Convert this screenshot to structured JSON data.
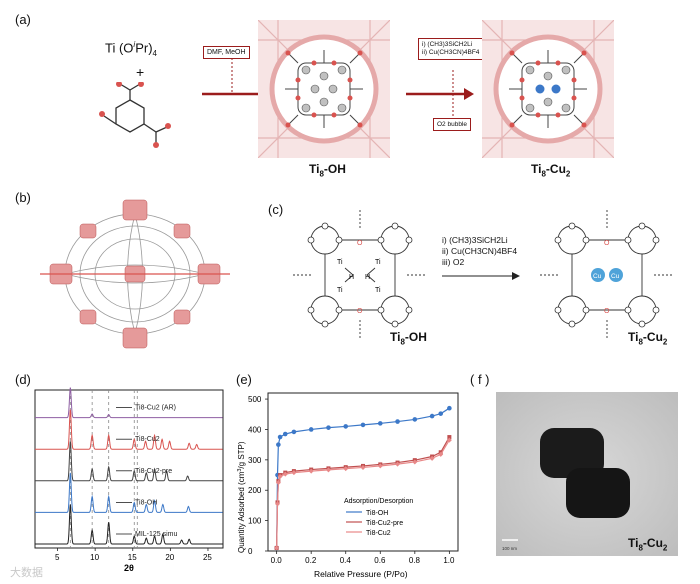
{
  "panels": {
    "a": {
      "label": "(a)",
      "reactant_ti": "Ti (O",
      "reactant_ti_sup": "i",
      "reactant_ti_rest": "Pr)",
      "reactant_ti_sub": "4",
      "plus": "+",
      "step1_box": "DMF, MeOH",
      "step2_box_line1": "i) (CH3)3SiCH2Li",
      "step2_box_line2": "ii) Cu(CH3CN)4BF4",
      "step3_box": "O2 bubble",
      "product1": "Ti8-OH",
      "product2": "Ti8-Cu2"
    },
    "b": {
      "label": "(b)"
    },
    "c": {
      "label": "(c)",
      "step_i": "i) (CH3)3SiCH2Li",
      "step_ii": "ii) Cu(CH3CN)4BF4",
      "step_iii": "iii) O2",
      "left_name": "Ti8-OH",
      "right_name": "Ti8-Cu2",
      "atom_ti": "Ti",
      "atom_o": "O",
      "atom_h": "H",
      "atom_cu": "Cu"
    },
    "d": {
      "label": "(d)",
      "xlabel": "2θ"
    },
    "e": {
      "label": "(e)",
      "xlabel": "Relative Pressure (P/Po)",
      "ylabel": "Quantity Adsorbed (cm3/g STP)",
      "legend_title": "Adsorption/Desorption"
    },
    "f": {
      "label": "( f )",
      "scale_bar": "100 nm",
      "caption": "Ti8-Cu2"
    }
  },
  "watermark": "大数据",
  "colors": {
    "black": "#222222",
    "red": "#d9534f",
    "purple": "#8e5ea2",
    "blue": "#3c78c8",
    "pink": "#e8a0a0",
    "darkred": "#9b1c1c"
  },
  "chart_data": [
    {
      "type": "line",
      "title": "",
      "xlabel": "2θ",
      "ylabel": "",
      "xlim": [
        2,
        27
      ],
      "xticks": [
        5,
        10,
        15,
        20,
        25
      ],
      "dashed_lines_x": [
        6.7,
        9.6,
        11.8,
        15.2,
        15.6
      ],
      "series": [
        {
          "name": "Ti8-Cu2 (AR)",
          "color": "#8e5ea2",
          "offset": 4,
          "peaks": [
            [
              6.7,
              1.0
            ],
            [
              9.6,
              0.12
            ],
            [
              11.8,
              0.1
            ]
          ]
        },
        {
          "name": "Ti8-Cu2",
          "color": "#d9534f",
          "offset": 3,
          "peaks": [
            [
              6.7,
              1.0
            ],
            [
              9.6,
              0.35
            ],
            [
              11.8,
              0.35
            ],
            [
              15.2,
              0.25
            ],
            [
              16.7,
              0.2
            ],
            [
              17.9,
              0.35
            ],
            [
              18.9,
              0.25
            ],
            [
              19.9,
              0.2
            ],
            [
              22.5,
              0.15
            ],
            [
              23.5,
              0.12
            ]
          ]
        },
        {
          "name": "Ti8-Cu2-pre",
          "color": "#444444",
          "offset": 2,
          "peaks": [
            [
              6.7,
              1.0
            ],
            [
              9.6,
              0.3
            ],
            [
              11.8,
              0.35
            ],
            [
              15.2,
              0.25
            ],
            [
              16.8,
              0.2
            ],
            [
              17.9,
              0.3
            ],
            [
              19.5,
              0.25
            ],
            [
              22.3,
              0.12
            ]
          ]
        },
        {
          "name": "Ti8-OH",
          "color": "#3c78c8",
          "offset": 1,
          "peaks": [
            [
              6.7,
              1.0
            ],
            [
              9.6,
              0.4
            ],
            [
              11.8,
              0.4
            ],
            [
              15.2,
              0.25
            ],
            [
              16.8,
              0.2
            ],
            [
              17.9,
              0.3
            ],
            [
              19.0,
              0.2
            ],
            [
              22.4,
              0.15
            ]
          ]
        },
        {
          "name": "MIL-125 simu",
          "color": "#222222",
          "offset": 0,
          "peaks": [
            [
              6.7,
              1.0
            ],
            [
              9.6,
              0.35
            ],
            [
              11.8,
              0.55
            ],
            [
              15.2,
              0.2
            ],
            [
              16.8,
              0.15
            ],
            [
              17.9,
              0.2
            ],
            [
              19.0,
              0.25
            ],
            [
              21.5,
              0.1
            ],
            [
              22.5,
              0.12
            ]
          ]
        }
      ]
    },
    {
      "type": "line",
      "title": "",
      "xlabel": "Relative Pressure (P/Po)",
      "ylabel": "Quantity Adsorbed (cm3/g STP)",
      "xlim": [
        -0.05,
        1.05
      ],
      "ylim": [
        0,
        520
      ],
      "xticks": [
        0.0,
        0.2,
        0.4,
        0.6,
        0.8,
        1.0
      ],
      "yticks": [
        0,
        100,
        200,
        300,
        400,
        500
      ],
      "legend_title": "Adsorption/Desorption",
      "legend_position": "bottom-right",
      "series": [
        {
          "name": "Ti8-OH",
          "color": "#3c78c8",
          "x": [
            0.0,
            0.005,
            0.01,
            0.02,
            0.05,
            0.1,
            0.2,
            0.3,
            0.4,
            0.5,
            0.6,
            0.7,
            0.8,
            0.9,
            0.95,
            1.0
          ],
          "y": [
            10,
            250,
            350,
            375,
            385,
            392,
            400,
            406,
            410,
            415,
            420,
            426,
            433,
            444,
            452,
            470
          ]
        },
        {
          "name": "Ti8-Cu2-pre",
          "color": "#c05050",
          "x": [
            0.0,
            0.005,
            0.01,
            0.02,
            0.05,
            0.1,
            0.2,
            0.3,
            0.4,
            0.5,
            0.6,
            0.7,
            0.8,
            0.9,
            0.95,
            1.0
          ],
          "y": [
            10,
            160,
            230,
            250,
            258,
            263,
            268,
            272,
            276,
            280,
            285,
            291,
            299,
            311,
            325,
            375
          ]
        },
        {
          "name": "Ti8-Cu2",
          "color": "#e88888",
          "x": [
            0.0,
            0.005,
            0.01,
            0.02,
            0.05,
            0.1,
            0.2,
            0.3,
            0.4,
            0.5,
            0.6,
            0.7,
            0.8,
            0.9,
            0.95,
            1.0
          ],
          "y": [
            10,
            155,
            225,
            245,
            253,
            258,
            263,
            267,
            271,
            275,
            280,
            286,
            293,
            305,
            318,
            365
          ]
        }
      ]
    }
  ]
}
